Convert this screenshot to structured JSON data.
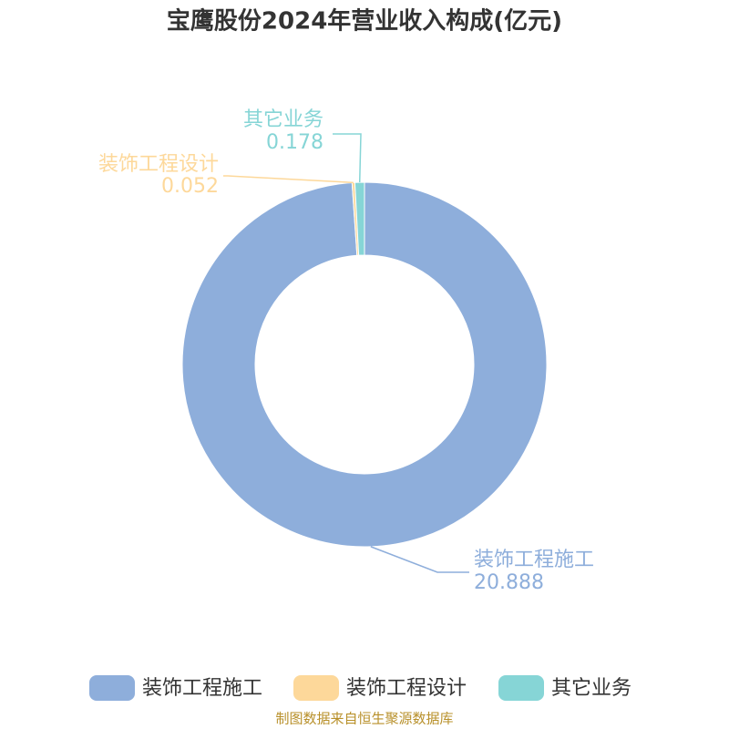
{
  "chart_data": {
    "type": "donut",
    "title": "宝鹰股份2024年营业收入构成(亿元)",
    "categories": [
      "装饰工程施工",
      "装饰工程设计",
      "其它业务"
    ],
    "values": [
      20.888,
      0.052,
      0.178
    ],
    "colors": [
      "#8eaedb",
      "#fdd89a",
      "#86d5d6"
    ],
    "source": "制图数据来自恒生聚源数据库"
  }
}
